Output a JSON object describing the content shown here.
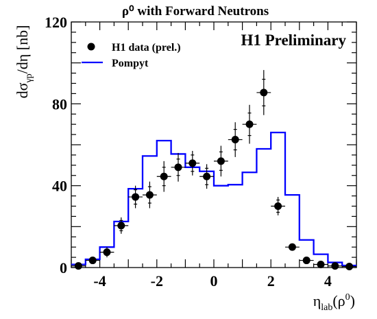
{
  "chart_data": {
    "type": "scatter",
    "title": "ρ⁰ with Forward Neutrons",
    "annotation": "H1 Preliminary",
    "xlabel": "ηlab(ρ⁰)",
    "ylabel": "dσγp/dη [nb]",
    "xlim": [
      -5,
      5
    ],
    "ylim": [
      0,
      120
    ],
    "xticks": [
      -4,
      -2,
      0,
      2,
      4
    ],
    "yticks": [
      0,
      40,
      80,
      120
    ],
    "legend_position": "top-left",
    "series": [
      {
        "name": "H1 data (prel.)",
        "kind": "points",
        "color": "#000000",
        "x": [
          -4.75,
          -4.25,
          -3.75,
          -3.25,
          -2.75,
          -2.25,
          -1.75,
          -1.25,
          -0.75,
          -0.25,
          0.25,
          0.75,
          1.25,
          1.75,
          2.25,
          2.75,
          3.25,
          3.75,
          4.25,
          4.75
        ],
        "y": [
          0.8,
          3.5,
          7.5,
          20.5,
          34.5,
          35.5,
          44.5,
          49.0,
          51.0,
          44.5,
          52.0,
          62.5,
          70.0,
          85.5,
          30.0,
          10.0,
          3.5,
          1.5,
          0.8,
          0.5
        ],
        "err_inner": [
          0.5,
          1.0,
          1.5,
          2.5,
          3.5,
          4.0,
          4.5,
          4.0,
          4.0,
          4.0,
          4.5,
          5.0,
          5.5,
          6.5,
          3.0,
          1.0,
          0.5,
          0.3,
          0.3,
          0.2
        ],
        "err_outer": [
          0.8,
          1.5,
          2.5,
          4.0,
          5.5,
          6.5,
          7.5,
          7.0,
          6.0,
          6.0,
          7.5,
          8.5,
          9.5,
          11.0,
          4.5,
          1.5,
          0.8,
          0.5,
          0.5,
          0.3
        ]
      },
      {
        "name": "Pompyt",
        "kind": "histogram",
        "color": "#0000ff",
        "bin_edges": [
          -5,
          -4.5,
          -4,
          -3.5,
          -3,
          -2.5,
          -2,
          -1.5,
          -1,
          -0.5,
          0,
          0.5,
          1,
          1.5,
          2,
          2.5,
          3,
          3.5,
          4,
          4.5,
          5
        ],
        "values": [
          1.5,
          4.0,
          10.0,
          22.5,
          38.5,
          54.5,
          62.0,
          55.5,
          49.0,
          47.0,
          40.0,
          40.5,
          46.5,
          58.0,
          66.0,
          35.5,
          13.5,
          6.5,
          2.5,
          1.0
        ]
      }
    ]
  }
}
